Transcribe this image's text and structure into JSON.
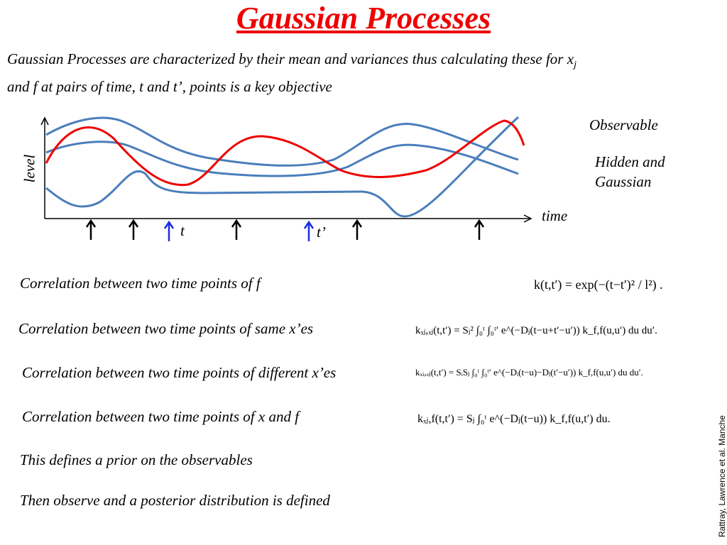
{
  "header": {
    "title": "Gaussian Processes"
  },
  "intro": {
    "text": "Gaussian Processes are characterized by their mean and variances thus calculating these for x",
    "subscript": "j",
    "text_after": "and f at pairs of time, t and t’, points is a key objective"
  },
  "figure": {
    "y_label": "level",
    "x_label": "time",
    "t_label": "t",
    "t_prime_label": "t’",
    "legend_observable": "Observable",
    "legend_hidden": "Hidden and Gaussian"
  },
  "rows": [
    {
      "label": "Correlation between two time points of f",
      "equation": "k(t,t′) = exp(−(t−t′)² / l²) ."
    },
    {
      "label": "Correlation between two time points of same x’es",
      "equation": "kₓⱼ,ₓⱼ(t,t′) = Sⱼ² ∫₀ᵗ ∫₀ᵗ′ e^(−Dⱼ(t−u+t′−u′)) k_f,f(u,u′) du du′."
    },
    {
      "label": "Correlation between two time points of different x’es",
      "equation": "kₓᵢ,ₓⱼ(t,t′) = SᵢSⱼ ∫₀ᵗ ∫₀ᵗ′ e^(−Dᵢ(t−u)−Dⱼ(t′−u′)) k_f,f(u,u′) du du′."
    },
    {
      "label": "Correlation between two time points of x and f",
      "equation": "kₓⱼ,f(t,t′) = Sⱼ ∫₀ᵗ e^(−Dⱼ(t−u)) k_f,f(u,t′) du."
    }
  ],
  "notes": [
    "This defines a prior on the observables",
    "Then observe and a posterior distribution is defined"
  ],
  "citation": "Rattray, Lawrence et al.  Manche"
}
